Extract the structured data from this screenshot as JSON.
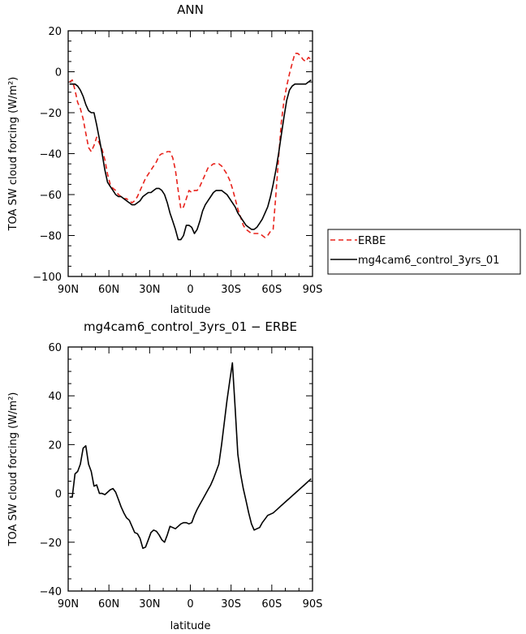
{
  "chart_data": [
    {
      "type": "line",
      "title": "ANN",
      "xlabel": "latitude",
      "ylabel": "TOA SW cloud forcing (W/m²)",
      "xlim": [
        -90,
        90
      ],
      "ylim": [
        -100,
        20
      ],
      "x_ticks": [
        -90,
        -60,
        -30,
        0,
        30,
        60,
        90
      ],
      "x_tick_labels": [
        "90N",
        "60N",
        "30N",
        "0",
        "30S",
        "60S",
        "90S"
      ],
      "y_ticks": [
        -100,
        -80,
        -60,
        -40,
        -20,
        0,
        20
      ],
      "y_tick_labels": [
        "−100",
        "−80",
        "−60",
        "−40",
        "−20",
        "0",
        "20"
      ],
      "legend": {
        "position": "right",
        "entries": [
          "ERBE",
          "mg4cam6_control_3yrs_01"
        ]
      },
      "series": [
        {
          "name": "ERBE",
          "color": "#e8231c",
          "dash": true,
          "x": [
            -89,
            -87,
            -85,
            -83,
            -81,
            -79,
            -77,
            -75,
            -73,
            -71,
            -69,
            -67,
            -65,
            -63,
            -61,
            -59,
            -57,
            -55,
            -53,
            -51,
            -49,
            -47,
            -45,
            -43,
            -41,
            -39,
            -37,
            -35,
            -33,
            -31,
            -29,
            -27,
            -25,
            -23,
            -21,
            -19,
            -17,
            -15,
            -13,
            -11,
            -9,
            -7,
            -5,
            -3,
            -1,
            1,
            3,
            5,
            7,
            9,
            11,
            13,
            15,
            17,
            19,
            21,
            23,
            25,
            27,
            29,
            31,
            33,
            35,
            37,
            39,
            41,
            43,
            45,
            47,
            49,
            51,
            53,
            55,
            57,
            59,
            61,
            63,
            65,
            67,
            69,
            71,
            73,
            75,
            77,
            79,
            81,
            83,
            85,
            87,
            89
          ],
          "y": [
            -5,
            -4,
            -9,
            -15,
            -18,
            -23,
            -30,
            -37,
            -39,
            -36,
            -32,
            -35,
            -38,
            -43,
            -50,
            -55,
            -57,
            -58,
            -60,
            -61,
            -62,
            -62,
            -63,
            -64,
            -63,
            -61,
            -58,
            -55,
            -52,
            -50,
            -48,
            -46,
            -44,
            -41,
            -40,
            -40,
            -39,
            -39,
            -42,
            -48,
            -58,
            -67,
            -66,
            -62,
            -58,
            -59,
            -58,
            -58,
            -56,
            -53,
            -50,
            -47,
            -46,
            -45,
            -45,
            -45,
            -46,
            -48,
            -50,
            -53,
            -57,
            -62,
            -67,
            -71,
            -75,
            -77,
            -78,
            -79,
            -79,
            -79,
            -79,
            -80,
            -81,
            -80,
            -78,
            -77,
            -60,
            -42,
            -25,
            -14,
            -7,
            -1,
            4,
            9,
            9,
            8,
            6,
            5,
            7,
            6
          ]
        },
        {
          "name": "mg4cam6_control_3yrs_01",
          "color": "#000000",
          "dash": false,
          "x": [
            -89,
            -87,
            -85,
            -83,
            -81,
            -79,
            -77,
            -75,
            -73,
            -71,
            -69,
            -67,
            -65,
            -63,
            -61,
            -59,
            -57,
            -55,
            -53,
            -51,
            -49,
            -47,
            -45,
            -43,
            -41,
            -39,
            -37,
            -35,
            -33,
            -31,
            -29,
            -27,
            -25,
            -23,
            -21,
            -19,
            -17,
            -15,
            -13,
            -11,
            -9,
            -7,
            -5,
            -3,
            -1,
            1,
            3,
            5,
            7,
            9,
            11,
            13,
            15,
            17,
            19,
            21,
            23,
            25,
            27,
            29,
            31,
            33,
            35,
            37,
            39,
            41,
            43,
            45,
            47,
            49,
            51,
            53,
            55,
            57,
            59,
            61,
            63,
            65,
            67,
            69,
            71,
            73,
            75,
            77,
            79,
            81,
            83,
            85,
            87,
            89
          ],
          "y": [
            -6,
            -6,
            -6,
            -7,
            -9,
            -12,
            -16,
            -19,
            -20,
            -20,
            -26,
            -33,
            -40,
            -48,
            -54,
            -56,
            -58,
            -60,
            -61,
            -61,
            -62,
            -63,
            -64,
            -65,
            -65,
            -64,
            -63,
            -61,
            -60,
            -59,
            -59,
            -58,
            -57,
            -57,
            -58,
            -60,
            -64,
            -69,
            -73,
            -77,
            -82,
            -82,
            -80,
            -75,
            -75,
            -76,
            -79,
            -77,
            -73,
            -68,
            -65,
            -63,
            -61,
            -59,
            -58,
            -58,
            -58,
            -59,
            -60,
            -62,
            -64,
            -66,
            -69,
            -71,
            -73,
            -75,
            -76,
            -77,
            -77,
            -76,
            -74,
            -72,
            -69,
            -66,
            -61,
            -55,
            -48,
            -40,
            -31,
            -22,
            -14,
            -9,
            -7,
            -6,
            -6,
            -6,
            -6,
            -6,
            -5,
            -4
          ]
        }
      ]
    },
    {
      "type": "line",
      "title": "mg4cam6_control_3yrs_01 − ERBE",
      "xlabel": "latitude",
      "ylabel": "TOA SW cloud forcing (W/m²)",
      "xlim": [
        -90,
        90
      ],
      "ylim": [
        -40,
        60
      ],
      "x_ticks": [
        -90,
        -60,
        -30,
        0,
        30,
        60,
        90
      ],
      "x_tick_labels": [
        "90N",
        "60N",
        "30N",
        "0",
        "30S",
        "60S",
        "90S"
      ],
      "y_ticks": [
        -40,
        -20,
        0,
        20,
        40,
        60
      ],
      "y_tick_labels": [
        "−40",
        "−20",
        "0",
        "20",
        "40",
        "60"
      ],
      "series": [
        {
          "color": "#000000",
          "dash": false,
          "x": [
            -89,
            -87,
            -85,
            -83,
            -81,
            -79,
            -77,
            -75,
            -73,
            -71,
            -69,
            -67,
            -65,
            -63,
            -61,
            -59,
            -57,
            -55,
            -53,
            -51,
            -49,
            -47,
            -45,
            -43,
            -41,
            -39,
            -37,
            -35,
            -33,
            -31,
            -29,
            -27,
            -25,
            -23,
            -21,
            -19,
            -17,
            -15,
            -13,
            -11,
            -9,
            -7,
            -5,
            -3,
            -1,
            1,
            3,
            5,
            7,
            9,
            11,
            13,
            15,
            17,
            19,
            21,
            23,
            25,
            27,
            29,
            31,
            33,
            35,
            37,
            39,
            41,
            43,
            45,
            47,
            49,
            51,
            53,
            55,
            57,
            59,
            61,
            63,
            65,
            67,
            69,
            71,
            73,
            75,
            77,
            79,
            81,
            83,
            85,
            87,
            89
          ],
          "y": [
            -1.5,
            -1.5,
            8,
            9,
            12,
            18.5,
            19.5,
            12,
            9,
            3,
            3.5,
            0,
            0,
            -0.5,
            0.5,
            1.5,
            2,
            0.5,
            -2.5,
            -5.5,
            -8,
            -10,
            -11,
            -13.5,
            -16,
            -16.5,
            -18.5,
            -22.5,
            -22,
            -19,
            -16,
            -15,
            -15.5,
            -17,
            -19,
            -20,
            -17,
            -13.5,
            -14,
            -14.5,
            -13.5,
            -12.5,
            -12,
            -12,
            -12.5,
            -12,
            -9,
            -6.5,
            -4.5,
            -2.5,
            -0.5,
            1.5,
            3.5,
            6,
            9,
            12,
            20,
            29,
            38,
            46,
            53.5,
            35,
            16,
            8,
            2,
            -3,
            -8,
            -12.5,
            -15,
            -14.5,
            -14,
            -12,
            -10.5,
            -9,
            -8.5,
            -8,
            -7,
            -6,
            -5,
            -4,
            -3,
            -2,
            -1,
            0,
            1,
            2,
            3,
            4,
            5,
            6
          ]
        }
      ]
    }
  ]
}
